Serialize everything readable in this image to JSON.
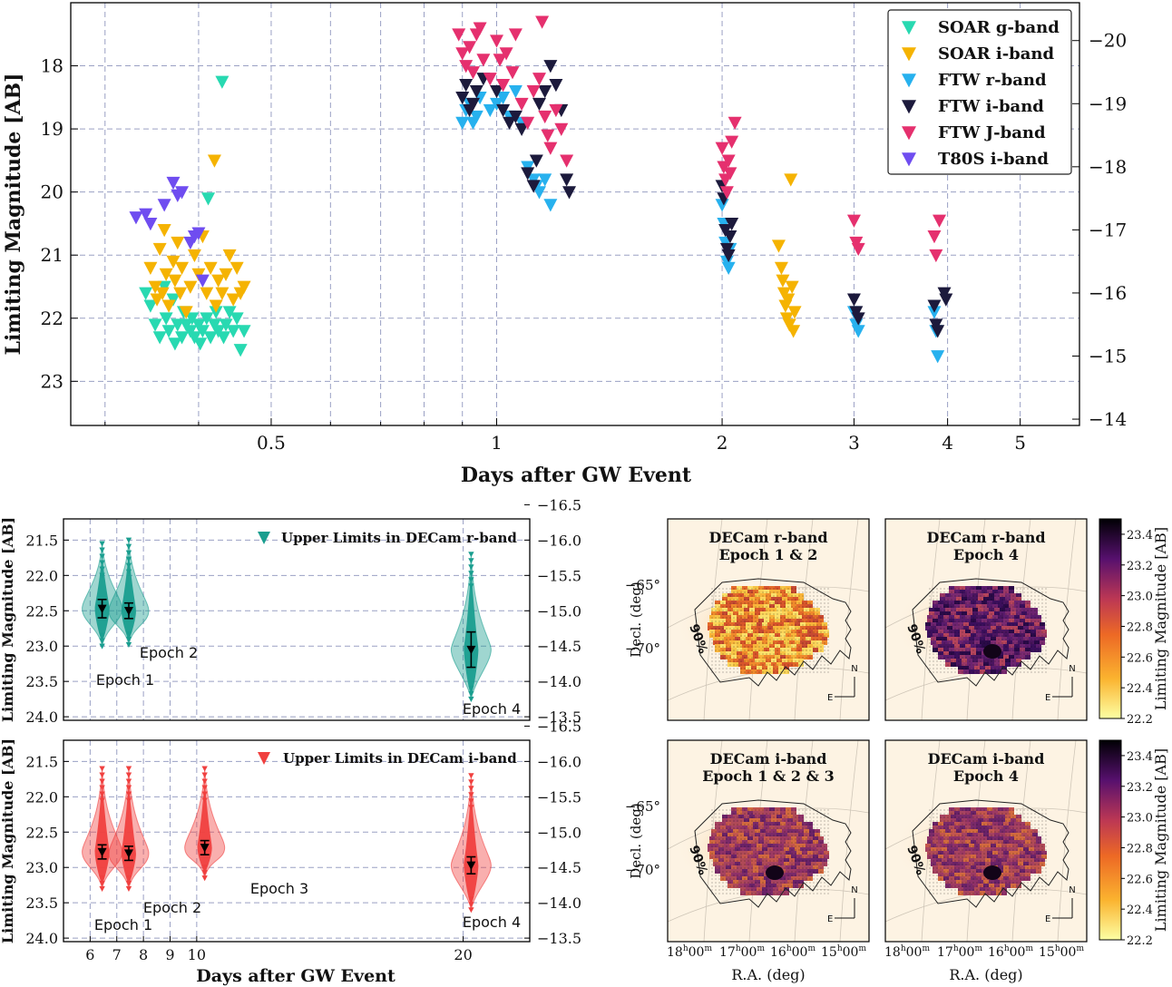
{
  "chart_data": [
    {
      "type": "scatter",
      "title": "",
      "xlabel": "Days after GW Event",
      "ylabel": "Limiting Magnitude [AB]",
      "xscale": "log",
      "xlim": [
        0.27,
        6.0
      ],
      "ylim": [
        23.7,
        17.0
      ],
      "xticks": [
        0.5,
        1,
        2,
        3,
        4,
        5
      ],
      "yticks": [
        18,
        19,
        20,
        21,
        22,
        23
      ],
      "right_yticks": [
        -20,
        -19,
        -18,
        -17,
        -16,
        -15,
        -14
      ],
      "right_ylim": [
        -13.9,
        -20.6
      ],
      "legend": "top-right",
      "marker": "triangle-down",
      "series": [
        {
          "name": "SOAR g-band",
          "color": "#28d9b1",
          "points": [
            [
              0.34,
              21.6
            ],
            [
              0.345,
              21.8
            ],
            [
              0.35,
              22.1
            ],
            [
              0.355,
              22.3
            ],
            [
              0.36,
              21.5
            ],
            [
              0.362,
              22.0
            ],
            [
              0.365,
              22.2
            ],
            [
              0.37,
              21.7
            ],
            [
              0.372,
              22.4
            ],
            [
              0.375,
              22.1
            ],
            [
              0.38,
              22.3
            ],
            [
              0.382,
              21.9
            ],
            [
              0.385,
              22.1
            ],
            [
              0.39,
              22.2
            ],
            [
              0.392,
              22.0
            ],
            [
              0.395,
              22.3
            ],
            [
              0.4,
              22.1
            ],
            [
              0.402,
              22.4
            ],
            [
              0.405,
              22.2
            ],
            [
              0.41,
              22.0
            ],
            [
              0.412,
              20.1
            ],
            [
              0.415,
              22.3
            ],
            [
              0.42,
              22.1
            ],
            [
              0.422,
              21.9
            ],
            [
              0.425,
              22.2
            ],
            [
              0.43,
              18.25
            ],
            [
              0.432,
              22.3
            ],
            [
              0.435,
              22.1
            ],
            [
              0.44,
              21.9
            ],
            [
              0.445,
              22.2
            ],
            [
              0.45,
              22.0
            ],
            [
              0.455,
              22.5
            ],
            [
              0.46,
              22.2
            ]
          ]
        },
        {
          "name": "SOAR i-band",
          "color": "#f5b301",
          "points": [
            [
              0.345,
              21.2
            ],
            [
              0.35,
              21.5
            ],
            [
              0.352,
              21.7
            ],
            [
              0.355,
              20.9
            ],
            [
              0.358,
              21.6
            ],
            [
              0.36,
              20.6
            ],
            [
              0.362,
              21.3
            ],
            [
              0.365,
              21.8
            ],
            [
              0.37,
              21.1
            ],
            [
              0.372,
              21.4
            ],
            [
              0.375,
              20.8
            ],
            [
              0.378,
              21.6
            ],
            [
              0.38,
              21.2
            ],
            [
              0.385,
              21.9
            ],
            [
              0.39,
              21.5
            ],
            [
              0.395,
              21.0
            ],
            [
              0.4,
              21.3
            ],
            [
              0.405,
              20.7
            ],
            [
              0.41,
              21.6
            ],
            [
              0.415,
              21.2
            ],
            [
              0.42,
              19.5
            ],
            [
              0.422,
              21.8
            ],
            [
              0.425,
              21.4
            ],
            [
              0.43,
              21.6
            ],
            [
              0.435,
              21.3
            ],
            [
              0.44,
              21.0
            ],
            [
              0.445,
              21.7
            ],
            [
              0.45,
              21.2
            ],
            [
              0.455,
              21.6
            ],
            [
              0.46,
              21.5
            ],
            [
              2.38,
              20.85
            ],
            [
              2.4,
              21.2
            ],
            [
              2.41,
              21.4
            ],
            [
              2.42,
              21.6
            ],
            [
              2.43,
              21.8
            ],
            [
              2.44,
              22.0
            ],
            [
              2.45,
              21.7
            ],
            [
              2.46,
              22.1
            ],
            [
              2.47,
              19.8
            ],
            [
              2.48,
              21.5
            ],
            [
              2.49,
              22.2
            ],
            [
              2.5,
              21.9
            ]
          ]
        },
        {
          "name": "FTW r-band",
          "color": "#27b1ee",
          "points": [
            [
              0.9,
              18.9
            ],
            [
              0.91,
              18.7
            ],
            [
              0.92,
              18.6
            ],
            [
              0.93,
              18.9
            ],
            [
              0.94,
              18.8
            ],
            [
              0.95,
              18.5
            ],
            [
              0.98,
              18.7
            ],
            [
              1.0,
              18.6
            ],
            [
              1.02,
              18.5
            ],
            [
              1.04,
              18.8
            ],
            [
              1.06,
              18.4
            ],
            [
              1.08,
              18.9
            ],
            [
              1.1,
              19.6
            ],
            [
              1.12,
              19.8
            ],
            [
              1.13,
              19.9
            ],
            [
              1.14,
              20.0
            ],
            [
              1.16,
              19.8
            ],
            [
              1.18,
              20.2
            ],
            [
              2.0,
              20.2
            ],
            [
              2.01,
              20.5
            ],
            [
              2.02,
              20.8
            ],
            [
              2.03,
              21.1
            ],
            [
              2.04,
              21.2
            ],
            [
              2.05,
              20.9
            ],
            [
              3.0,
              21.9
            ],
            [
              3.02,
              22.1
            ],
            [
              3.04,
              22.2
            ],
            [
              3.84,
              21.9
            ],
            [
              3.86,
              22.2
            ],
            [
              3.88,
              22.6
            ]
          ]
        },
        {
          "name": "FTW i-band",
          "color": "#1c1a3c",
          "points": [
            [
              0.9,
              18.5
            ],
            [
              0.91,
              18.3
            ],
            [
              0.92,
              18.7
            ],
            [
              0.93,
              18.6
            ],
            [
              0.94,
              18.4
            ],
            [
              0.96,
              18.2
            ],
            [
              1.0,
              18.4
            ],
            [
              1.02,
              18.7
            ],
            [
              1.04,
              18.9
            ],
            [
              1.06,
              18.8
            ],
            [
              1.08,
              19.0
            ],
            [
              1.1,
              19.7
            ],
            [
              1.12,
              19.9
            ],
            [
              1.13,
              19.5
            ],
            [
              1.14,
              18.6
            ],
            [
              1.16,
              18.4
            ],
            [
              1.18,
              18.0
            ],
            [
              1.2,
              18.3
            ],
            [
              1.22,
              18.7
            ],
            [
              1.24,
              19.8
            ],
            [
              1.25,
              20.0
            ],
            [
              2.0,
              19.9
            ],
            [
              2.01,
              20.1
            ],
            [
              2.02,
              20.6
            ],
            [
              2.03,
              20.9
            ],
            [
              2.04,
              21.0
            ],
            [
              2.05,
              20.7
            ],
            [
              2.06,
              20.5
            ],
            [
              3.0,
              21.7
            ],
            [
              3.02,
              21.9
            ],
            [
              3.04,
              22.0
            ],
            [
              3.84,
              21.8
            ],
            [
              3.86,
              22.1
            ],
            [
              3.88,
              22.2
            ],
            [
              3.96,
              21.6
            ],
            [
              3.98,
              21.7
            ]
          ]
        },
        {
          "name": "FTW J-band",
          "color": "#e5306e",
          "points": [
            [
              0.89,
              17.5
            ],
            [
              0.9,
              17.8
            ],
            [
              0.91,
              18.0
            ],
            [
              0.92,
              17.7
            ],
            [
              0.93,
              18.1
            ],
            [
              0.94,
              17.5
            ],
            [
              0.95,
              17.4
            ],
            [
              0.96,
              17.9
            ],
            [
              0.98,
              18.2
            ],
            [
              1.0,
              17.6
            ],
            [
              1.01,
              17.9
            ],
            [
              1.02,
              18.3
            ],
            [
              1.03,
              17.8
            ],
            [
              1.05,
              18.1
            ],
            [
              1.06,
              17.5
            ],
            [
              1.08,
              18.6
            ],
            [
              1.1,
              18.9
            ],
            [
              1.12,
              18.4
            ],
            [
              1.14,
              18.2
            ],
            [
              1.15,
              17.3
            ],
            [
              1.16,
              18.8
            ],
            [
              1.17,
              19.1
            ],
            [
              1.18,
              19.3
            ],
            [
              1.2,
              18.7
            ],
            [
              1.22,
              19.0
            ],
            [
              1.24,
              19.5
            ],
            [
              2.0,
              19.3
            ],
            [
              2.01,
              19.6
            ],
            [
              2.02,
              19.8
            ],
            [
              2.03,
              20.0
            ],
            [
              2.04,
              19.5
            ],
            [
              2.05,
              19.7
            ],
            [
              2.06,
              19.2
            ],
            [
              2.08,
              18.9
            ],
            [
              3.0,
              20.45
            ],
            [
              3.02,
              20.8
            ],
            [
              3.04,
              20.9
            ],
            [
              3.84,
              20.7
            ],
            [
              3.86,
              21.0
            ],
            [
              3.9,
              20.45
            ]
          ]
        },
        {
          "name": "T80S i-band",
          "color": "#6f4df0",
          "points": [
            [
              0.33,
              20.4
            ],
            [
              0.34,
              20.35
            ],
            [
              0.345,
              20.5
            ],
            [
              0.36,
              20.2
            ],
            [
              0.37,
              19.85
            ],
            [
              0.375,
              20.05
            ],
            [
              0.38,
              20.0
            ],
            [
              0.39,
              20.8
            ],
            [
              0.395,
              20.7
            ],
            [
              0.4,
              20.65
            ],
            [
              0.405,
              21.4
            ]
          ]
        }
      ]
    },
    {
      "type": "violin",
      "title": "",
      "xlabel": "",
      "ylabel": "Limiting Magnitude [AB]",
      "legend": "top-right",
      "legend_label": "Upper Limits in DECam r-band",
      "color": "#1a9e8f",
      "xlim": [
        5,
        22.5
      ],
      "ylim": [
        24.05,
        21.2
      ],
      "yticks": [
        21.5,
        22.0,
        22.5,
        23.0,
        23.5,
        24.0
      ],
      "right_yticks": [
        -16.5,
        -16.0,
        -15.5,
        -15.0,
        -14.5,
        -14.0,
        -13.5
      ],
      "right_ylim": [
        -13.45,
        -16.3
      ],
      "epochs": [
        {
          "label": "Epoch 1",
          "day": 6.45,
          "median": 22.47,
          "err": 0.13,
          "min": 21.55,
          "max": 23.0
        },
        {
          "label": "Epoch 2",
          "day": 7.45,
          "median": 22.5,
          "err": 0.11,
          "min": 21.5,
          "max": 22.98
        },
        {
          "label": "Epoch 4",
          "day": 20.3,
          "median": 23.05,
          "err": 0.25,
          "min": 21.7,
          "max": 23.75
        }
      ]
    },
    {
      "type": "violin",
      "title": "",
      "xlabel": "Days after GW Event",
      "ylabel": "Limiting Magnitude [AB]",
      "legend": "top-right",
      "legend_label": "Upper Limits in DECam i-band",
      "color": "#f0403f",
      "xlim": [
        5,
        22.5
      ],
      "xticks": [
        6,
        7,
        8,
        9,
        10,
        20
      ],
      "ylim": [
        24.05,
        21.2
      ],
      "yticks": [
        21.5,
        22.0,
        22.5,
        23.0,
        23.5,
        24.0
      ],
      "right_yticks": [
        -16.5,
        -16.0,
        -15.5,
        -15.0,
        -14.5,
        -14.0,
        -13.5
      ],
      "right_ylim": [
        -13.45,
        -16.3
      ],
      "epochs": [
        {
          "label": "Epoch 1",
          "day": 6.45,
          "median": 22.78,
          "err": 0.1,
          "min": 21.6,
          "max": 23.3
        },
        {
          "label": "Epoch 2",
          "day": 7.45,
          "median": 22.8,
          "err": 0.1,
          "min": 21.6,
          "max": 23.3
        },
        {
          "label": "Epoch 3",
          "day": 10.3,
          "median": 22.72,
          "err": 0.1,
          "min": 21.6,
          "max": 23.15
        },
        {
          "label": "Epoch 4",
          "day": 20.3,
          "median": 22.97,
          "err": 0.12,
          "min": 21.7,
          "max": 23.6
        }
      ]
    },
    {
      "type": "heatmap",
      "panels": [
        {
          "title": "DECam r-band\nEpoch 1 & 2",
          "title_line1": "DECam r-band",
          "title_line2": "Epoch 1 & 2"
        },
        {
          "title": "DECam r-band\nEpoch 4",
          "title_line1": "DECam r-band",
          "title_line2": "Epoch 4"
        },
        {
          "title": "DECam i-band\nEpoch 1 & 2 & 3",
          "title_line1": "DECam i-band",
          "title_line2": "Epoch 1 & 2 & 3"
        },
        {
          "title": "DECam i-band\nEpoch 4",
          "title_line1": "DECam i-band",
          "title_line2": "Epoch 4"
        }
      ],
      "xlabel": "R.A. (deg)",
      "ylabel": "Decl. (deg)",
      "contour_label": "90%",
      "dec_ticks": [
        "−65°",
        "−70°"
      ],
      "ra_ticks": [
        {
          "h": "18",
          "m": "00"
        },
        {
          "h": "17",
          "m": "00"
        },
        {
          "h": "16",
          "m": "00"
        },
        {
          "h": "15",
          "m": "00"
        }
      ],
      "compass": {
        "north": "N",
        "east": "E"
      },
      "colorbar": {
        "label": "Limiting Magnitude [AB]",
        "ticks": [
          23.4,
          23.2,
          23.0,
          22.8,
          22.6,
          22.4,
          22.2
        ],
        "range": [
          22.2,
          23.5
        ]
      }
    }
  ]
}
